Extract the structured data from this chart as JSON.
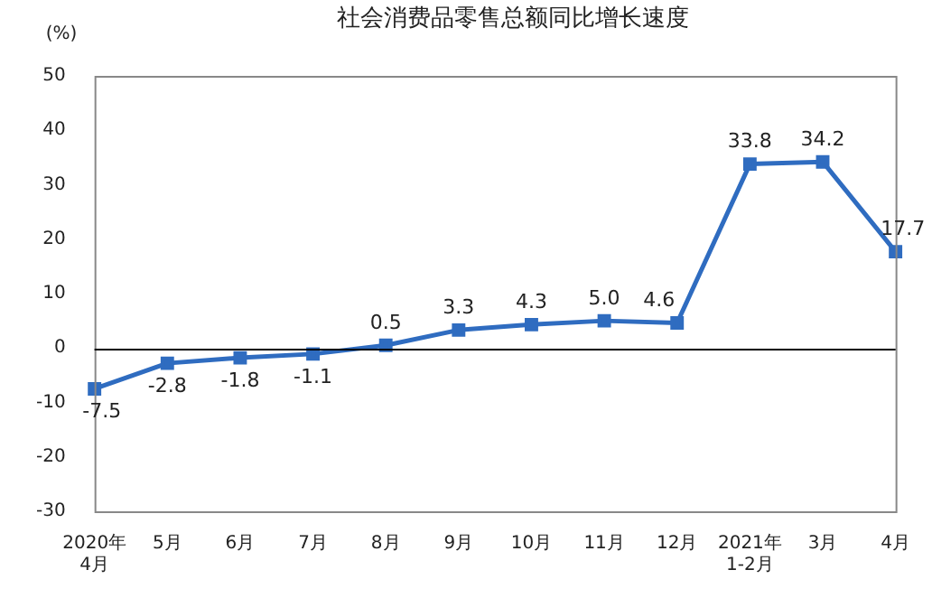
{
  "chart_data": {
    "type": "line",
    "title": "社会消费品零售总额同比增长速度",
    "ylabel": "(%)",
    "categories": [
      "2020年\n4月",
      "5月",
      "6月",
      "7月",
      "8月",
      "9月",
      "10月",
      "11月",
      "12月",
      "2021年\n1-2月",
      "3月",
      "4月"
    ],
    "series": [
      {
        "color": "#2f6cc0",
        "values": [
          -7.5,
          -2.8,
          -1.8,
          -1.1,
          0.5,
          3.3,
          4.3,
          5.0,
          4.6,
          33.8,
          34.2,
          17.7
        ],
        "value_labels": [
          "-7.5",
          "-2.8",
          "-1.8",
          "-1.1",
          "0.5",
          "3.3",
          "4.3",
          "5.0",
          "4.6",
          "33.8",
          "34.2",
          "17.7"
        ]
      }
    ],
    "ref_lines": [
      {
        "axis": "y",
        "value": 0,
        "color": "#000000"
      }
    ],
    "ylim": [
      -30,
      50
    ],
    "yticks": [
      -30,
      -20,
      -10,
      0,
      10,
      20,
      30,
      40,
      50
    ],
    "grid": false,
    "legend": false,
    "marker": "square",
    "line_style": "solid"
  }
}
